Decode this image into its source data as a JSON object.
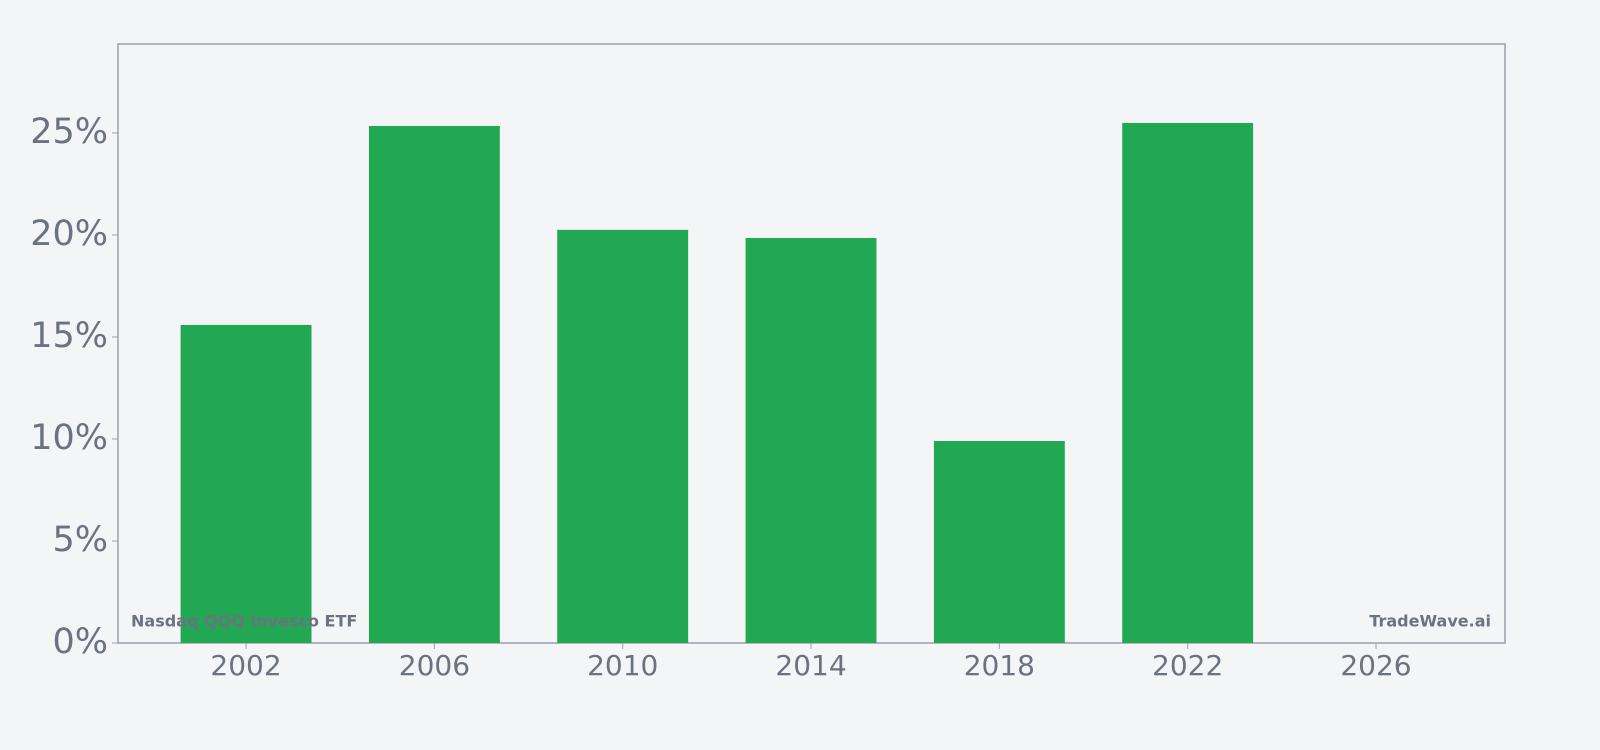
{
  "chart_data": {
    "type": "bar",
    "x": [
      2002,
      2006,
      2010,
      2014,
      2018,
      2022
    ],
    "values": [
      15.59,
      25.34,
      20.25,
      19.85,
      9.9,
      25.49
    ],
    "color": "#22a752",
    "xlim": [
      1999.28,
      2028.74
    ],
    "xticks": [
      2002,
      2006,
      2010,
      2014,
      2018,
      2022,
      2026
    ],
    "ylim": [
      0,
      29.36
    ],
    "yticks": [
      {
        "value": 0,
        "label": "0%"
      },
      {
        "value": 5,
        "label": "5%"
      },
      {
        "value": 10,
        "label": "10%"
      },
      {
        "value": 15,
        "label": "15%"
      },
      {
        "value": 20,
        "label": "20%"
      },
      {
        "value": 25,
        "label": "25%"
      }
    ],
    "grid": false,
    "annotations": [
      "Nasdaq QQQ Invesco ETF",
      "TradeWave.ai"
    ]
  }
}
